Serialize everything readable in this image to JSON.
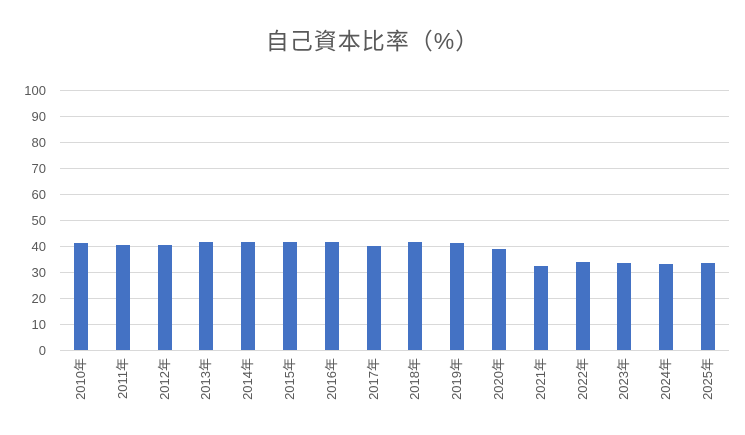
{
  "chart_data": {
    "type": "bar",
    "title": "自己資本比率（%）",
    "categories": [
      "2010年",
      "2011年",
      "2012年",
      "2013年",
      "2014年",
      "2015年",
      "2016年",
      "2017年",
      "2018年",
      "2019年",
      "2020年",
      "2021年",
      "2022年",
      "2023年",
      "2024年",
      "2025年"
    ],
    "values": [
      41,
      40.5,
      40.5,
      41.5,
      41.5,
      41.5,
      41.5,
      40,
      41.5,
      41,
      39,
      32.5,
      34,
      33.5,
      33,
      33.5
    ],
    "xlabel": "",
    "ylabel": "",
    "ylim": [
      0,
      100
    ],
    "ytick_interval": 10,
    "yticks": [
      0,
      10,
      20,
      30,
      40,
      50,
      60,
      70,
      80,
      90,
      100
    ],
    "grid": true,
    "legend": "none",
    "bar_color": "#4472C4",
    "gridline_color": "#D9D9D9",
    "text_color": "#595959"
  }
}
